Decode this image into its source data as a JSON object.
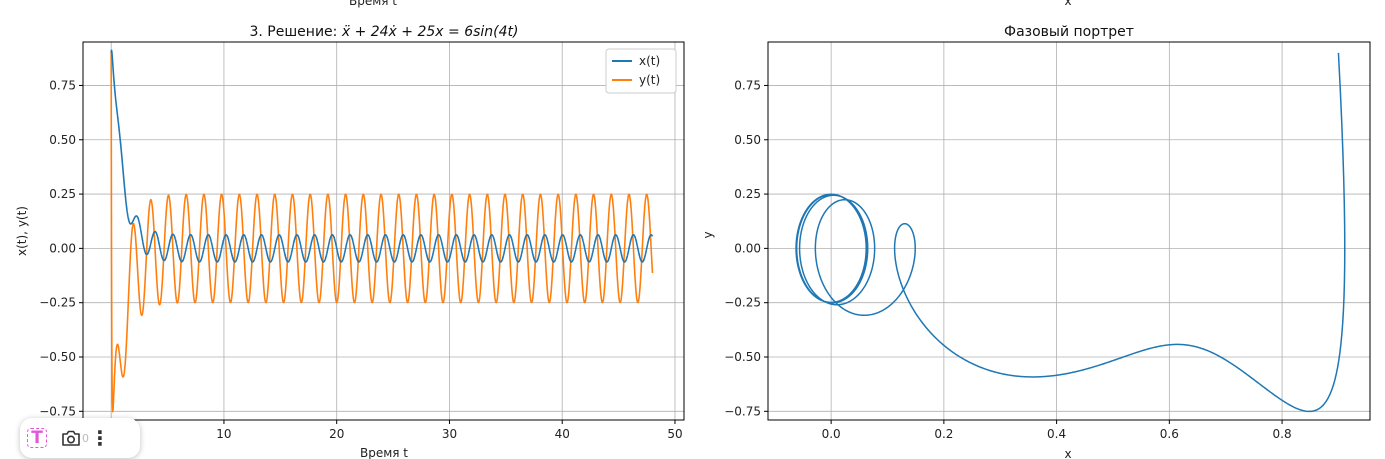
{
  "top_clipped_labels": {
    "left": "Время t",
    "right": "x"
  },
  "colors": {
    "x_series": "#1f77b4",
    "y_series": "#ff7f0e",
    "grid": "#b0b0b0"
  },
  "overlay_toolbar": {
    "text_tool_icon": "text-select-icon",
    "camera_icon": "camera-icon",
    "more_icon": "more-vertical-icon",
    "more_glyph": "⋮",
    "partial_label": "0"
  },
  "chart_data": [
    {
      "type": "line",
      "title_prefix": "3. Решение: ",
      "title_equation": "ẍ + 24ẋ + 25x = 6sin(4t)",
      "xlabel": "Время t",
      "ylabel": "x(t), y(t)",
      "xlim": [
        -2.5,
        50.8
      ],
      "ylim": [
        -0.79,
        0.95
      ],
      "xticks": [
        10,
        20,
        30,
        40,
        50
      ],
      "xtick_labels": [
        "10",
        "20",
        "30",
        "40",
        "50"
      ],
      "yticks": [
        0.75,
        0.5,
        0.25,
        0.0,
        -0.25,
        -0.5,
        -0.75
      ],
      "ytick_labels": [
        "0.75",
        "0.50",
        "0.25",
        "0.00",
        "−0.25",
        "−0.50",
        "−0.75"
      ],
      "grid": true,
      "legend_position": "top-right",
      "t_range": [
        0,
        48
      ],
      "series": [
        {
          "name": "x(t)",
          "color": "#1f77b4",
          "initial": 0.9,
          "steady_amplitude": 0.06
        },
        {
          "name": "y(t)",
          "color": "#ff7f0e",
          "initial": 0.9,
          "steady_amplitude": 0.24
        }
      ]
    },
    {
      "type": "line",
      "title": "Фазовый портрет",
      "xlabel": "x",
      "ylabel": "y",
      "xlim": [
        -0.112,
        0.956
      ],
      "ylim": [
        -0.79,
        0.95
      ],
      "xticks": [
        0.0,
        0.2,
        0.4,
        0.6,
        0.8
      ],
      "xtick_labels": [
        "0.0",
        "0.2",
        "0.4",
        "0.6",
        "0.8"
      ],
      "yticks": [
        0.75,
        0.5,
        0.25,
        0.0,
        -0.25,
        -0.5,
        -0.75
      ],
      "ytick_labels": [
        "0.75",
        "0.50",
        "0.25",
        "0.00",
        "−0.25",
        "−0.50",
        "−0.75"
      ],
      "grid": true,
      "series": [
        {
          "color": "#1f77b4",
          "x_of": "x(t)",
          "y_of": "y(t)"
        }
      ]
    }
  ]
}
